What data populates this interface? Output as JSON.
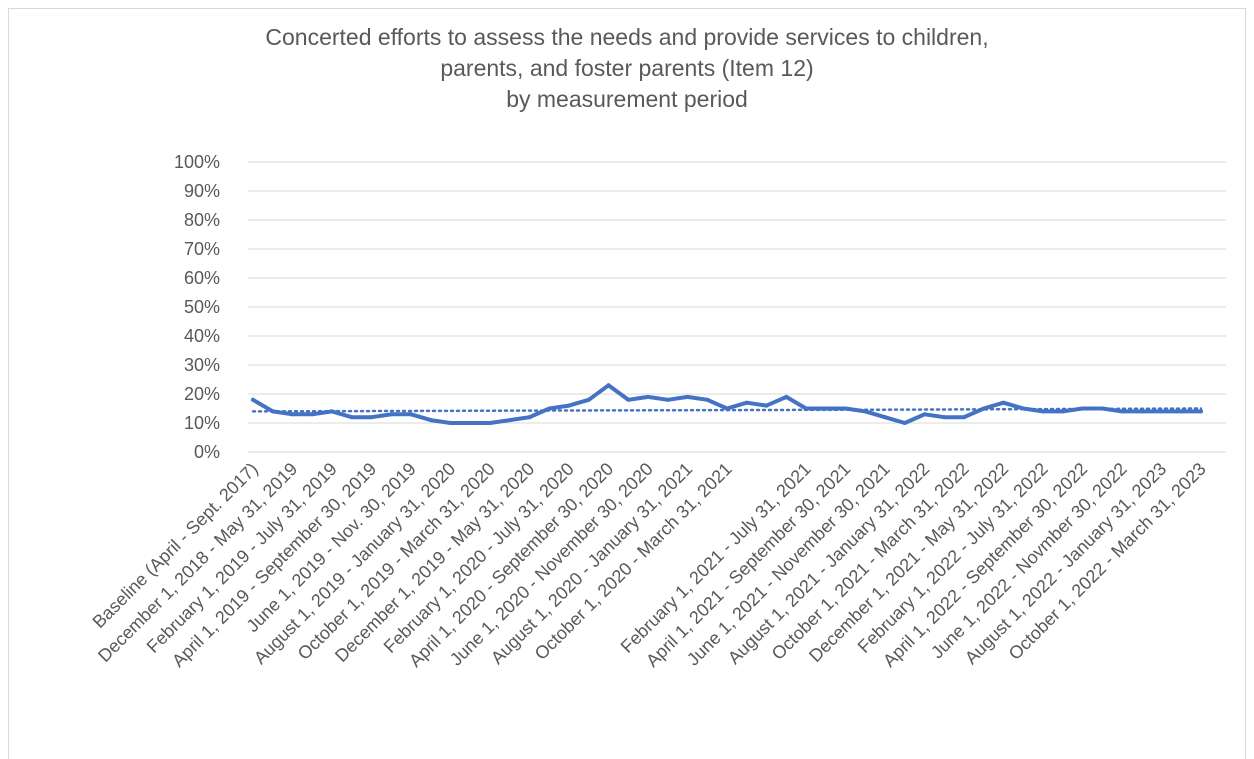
{
  "chart_data": {
    "type": "line",
    "title_lines": [
      "Concerted efforts to assess the needs and provide services to children,",
      "parents, and foster parents (Item 12)",
      "by measurement period"
    ],
    "ylim": [
      0,
      100
    ],
    "y_ticks": [
      "0%",
      "10%",
      "20%",
      "30%",
      "40%",
      "50%",
      "60%",
      "70%",
      "80%",
      "90%",
      "100%"
    ],
    "y_unit": "%",
    "grid": true,
    "legend": "none",
    "series": [
      {
        "style": "solid",
        "color": "#4472c4",
        "values": [
          18,
          14,
          13,
          13,
          14,
          12,
          12,
          13,
          13,
          11,
          10,
          10,
          10,
          11,
          12,
          15,
          16,
          18,
          23,
          18,
          19,
          18,
          19,
          18,
          15,
          17,
          16,
          19,
          15,
          15,
          15,
          14,
          12,
          10,
          13,
          12,
          12,
          15,
          17,
          15,
          14,
          14,
          15,
          15,
          14,
          14,
          14,
          14,
          14
        ]
      },
      {
        "style": "trendline-dotted",
        "color": "#4472c4",
        "values": [
          14,
          14.3,
          14.6,
          15
        ]
      }
    ],
    "x_labels": [
      {
        "text": "Baseline (April - Sept. 2017)",
        "index": 0
      },
      {
        "text": "December 1, 2018 - May 31, 2019",
        "index": 2
      },
      {
        "text": "February 1, 2019 - July 31, 2019",
        "index": 4
      },
      {
        "text": "April 1, 2019 - September 30, 2019",
        "index": 6
      },
      {
        "text": "June 1, 2019 - Nov. 30, 2019",
        "index": 8
      },
      {
        "text": "August 1, 2019 - January 31, 2020",
        "index": 10
      },
      {
        "text": "October 1, 2019 - March 31, 2020",
        "index": 12
      },
      {
        "text": "December 1, 2019 - May 31, 2020",
        "index": 14
      },
      {
        "text": "February 1, 2020 - July 31, 2020",
        "index": 16
      },
      {
        "text": "April 1, 2020 - September 30, 2020",
        "index": 18
      },
      {
        "text": "June 1, 2020 - November 30, 2020",
        "index": 20
      },
      {
        "text": "August 1, 2020 - January 31, 2021",
        "index": 22
      },
      {
        "text": "October 1, 2020 - March 31, 2021",
        "index": 24
      },
      {
        "text": "February 1, 2021 - July 31, 2021",
        "index": 28
      },
      {
        "text": "April 1, 2021 - September 30, 2021",
        "index": 30
      },
      {
        "text": "June 1, 2021 - November 30, 2021",
        "index": 32
      },
      {
        "text": "August 1, 2021 - January 31, 2022",
        "index": 34
      },
      {
        "text": "October 1, 2021 - March 31, 2022",
        "index": 36
      },
      {
        "text": "December 1, 2021 - May 31, 2022",
        "index": 38
      },
      {
        "text": "February 1, 2022 - July 31, 2022",
        "index": 40
      },
      {
        "text": "April 1, 2022 - September 30, 2022",
        "index": 42
      },
      {
        "text": "June 1, 2022 - Novmber 30, 2022",
        "index": 44
      },
      {
        "text": "August 1, 2022 - January 31, 2023",
        "index": 46
      },
      {
        "text": "October 1, 2022 - March 31, 2023",
        "index": 48
      }
    ]
  }
}
